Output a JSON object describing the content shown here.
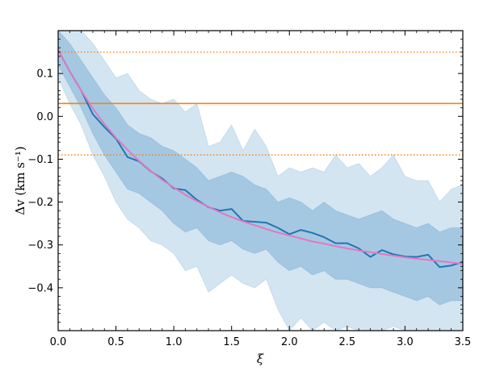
{
  "chart_data": {
    "type": "line",
    "xlabel": "ξ",
    "ylabel": "Δv (km s⁻¹)",
    "xlim": [
      0.0,
      3.5
    ],
    "ylim": [
      -0.5,
      0.2
    ],
    "x_ticks": [
      "0.0",
      "0.5",
      "1.0",
      "1.5",
      "2.0",
      "2.5",
      "3.0",
      "3.5"
    ],
    "y_ticks": [
      "0.1",
      "0.0",
      "−0.1",
      "−0.2",
      "−0.3",
      "−0.4"
    ],
    "y_tick_values": [
      0.1,
      0.0,
      -0.1,
      -0.2,
      -0.3,
      -0.4
    ],
    "x_tick_values": [
      0.0,
      0.5,
      1.0,
      1.5,
      2.0,
      2.5,
      3.0,
      3.5
    ],
    "grid": false,
    "x": [
      0.0,
      0.1,
      0.2,
      0.3,
      0.4,
      0.5,
      0.6,
      0.7,
      0.8,
      0.9,
      1.0,
      1.1,
      1.2,
      1.3,
      1.4,
      1.5,
      1.6,
      1.7,
      1.8,
      1.9,
      2.0,
      2.1,
      2.2,
      2.3,
      2.4,
      2.5,
      2.6,
      2.7,
      2.8,
      2.9,
      3.0,
      3.1,
      3.2,
      3.3,
      3.4,
      3.5
    ],
    "series": [
      {
        "role": "median",
        "color": "#1f77b4",
        "values": [
          0.155,
          0.105,
          0.06,
          0.005,
          -0.025,
          -0.052,
          -0.095,
          -0.105,
          -0.128,
          -0.145,
          -0.168,
          -0.172,
          -0.195,
          -0.212,
          -0.22,
          -0.216,
          -0.244,
          -0.246,
          -0.248,
          -0.26,
          -0.275,
          -0.265,
          -0.272,
          -0.282,
          -0.296,
          -0.296,
          -0.308,
          -0.328,
          -0.312,
          -0.322,
          -0.327,
          -0.328,
          -0.323,
          -0.352,
          -0.348,
          -0.34
        ]
      },
      {
        "role": "model",
        "color": "#e377c2",
        "values": [
          0.155,
          0.105,
          0.06,
          0.018,
          -0.018,
          -0.05,
          -0.078,
          -0.104,
          -0.127,
          -0.148,
          -0.166,
          -0.183,
          -0.198,
          -0.211,
          -0.224,
          -0.235,
          -0.245,
          -0.254,
          -0.263,
          -0.271,
          -0.278,
          -0.285,
          -0.292,
          -0.297,
          -0.303,
          -0.308,
          -0.313,
          -0.317,
          -0.321,
          -0.325,
          -0.329,
          -0.332,
          -0.335,
          -0.338,
          -0.341,
          -0.344
        ]
      }
    ],
    "bands": [
      {
        "role": "outer",
        "color": "#a6cbe3",
        "opacity": 0.5,
        "upper": [
          0.2,
          0.2,
          0.2,
          0.17,
          0.13,
          0.09,
          0.1,
          0.06,
          0.04,
          0.03,
          0.04,
          0.01,
          0.03,
          -0.07,
          -0.06,
          -0.02,
          -0.08,
          -0.03,
          -0.07,
          -0.14,
          -0.12,
          -0.13,
          -0.12,
          -0.13,
          -0.09,
          -0.12,
          -0.11,
          -0.14,
          -0.12,
          -0.09,
          -0.14,
          -0.15,
          -0.15,
          -0.2,
          -0.17,
          -0.16
        ],
        "lower": [
          0.09,
          0.03,
          -0.02,
          -0.09,
          -0.14,
          -0.2,
          -0.24,
          -0.26,
          -0.29,
          -0.3,
          -0.32,
          -0.36,
          -0.35,
          -0.41,
          -0.39,
          -0.37,
          -0.39,
          -0.4,
          -0.38,
          -0.45,
          -0.5,
          -0.47,
          -0.5,
          -0.48,
          -0.5,
          -0.49,
          -0.5,
          -0.5,
          -0.5,
          -0.49,
          -0.5,
          -0.5,
          -0.5,
          -0.5,
          -0.5,
          -0.5
        ]
      },
      {
        "role": "inner",
        "color": "#7fb1d6",
        "opacity": 0.55,
        "upper": [
          0.2,
          0.17,
          0.13,
          0.09,
          0.05,
          0.02,
          -0.02,
          -0.04,
          -0.05,
          -0.07,
          -0.08,
          -0.1,
          -0.12,
          -0.15,
          -0.14,
          -0.13,
          -0.14,
          -0.16,
          -0.17,
          -0.2,
          -0.19,
          -0.2,
          -0.22,
          -0.2,
          -0.22,
          -0.23,
          -0.24,
          -0.23,
          -0.22,
          -0.24,
          -0.25,
          -0.26,
          -0.25,
          -0.27,
          -0.26,
          -0.26
        ],
        "lower": [
          0.12,
          0.07,
          0.02,
          -0.04,
          -0.09,
          -0.13,
          -0.17,
          -0.18,
          -0.2,
          -0.22,
          -0.25,
          -0.27,
          -0.26,
          -0.29,
          -0.3,
          -0.29,
          -0.31,
          -0.32,
          -0.31,
          -0.34,
          -0.36,
          -0.35,
          -0.37,
          -0.36,
          -0.38,
          -0.38,
          -0.39,
          -0.4,
          -0.4,
          -0.41,
          -0.42,
          -0.43,
          -0.42,
          -0.44,
          -0.43,
          -0.43
        ]
      }
    ],
    "reference_lines": [
      {
        "y": 0.15,
        "style": "dotted",
        "color": "#ff7f0e"
      },
      {
        "y": 0.03,
        "style": "solid",
        "color": "#ff7f0e"
      },
      {
        "y": -0.09,
        "style": "dotted",
        "color": "#ff7f0e"
      }
    ]
  }
}
